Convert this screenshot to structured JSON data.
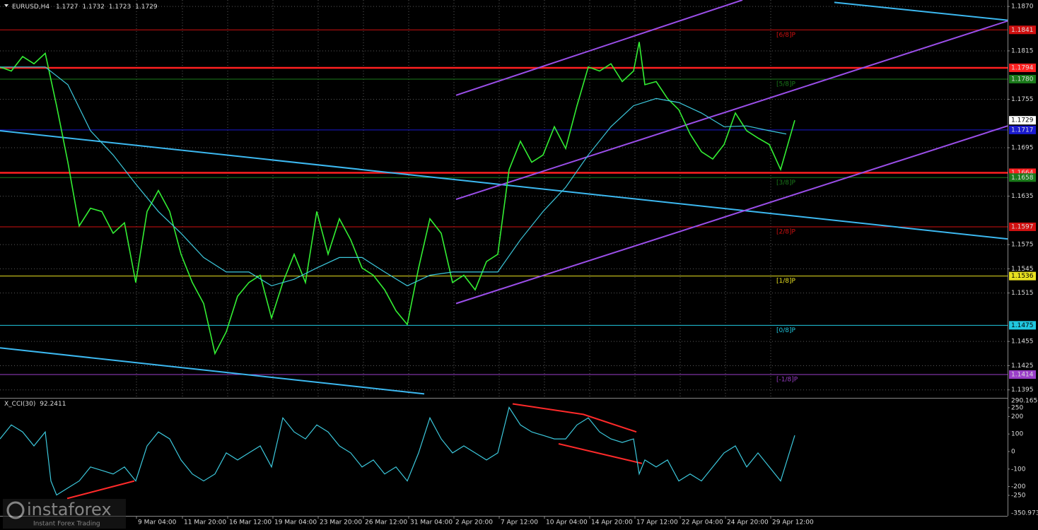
{
  "chart_data": [
    {
      "type": "line",
      "title": "EURUSD,H4",
      "quote": {
        "open": 1.1727,
        "high": 1.1732,
        "low": 1.1723,
        "close": 1.1729
      },
      "xlim": [
        0,
        356.25
      ],
      "xticks": [
        {
          "value": 48.25,
          "label": "9 Mar 04:00"
        },
        {
          "value": 64.5,
          "label": "11 Mar 20:00"
        },
        {
          "value": 80.5,
          "label": "16 Mar 12:00"
        },
        {
          "value": 96.5,
          "label": "19 Mar 04:00"
        },
        {
          "value": 112.5,
          "label": "23 Mar 20:00"
        },
        {
          "value": 128.5,
          "label": "26 Mar 12:00"
        },
        {
          "value": 144.5,
          "label": "31 Mar 04:00"
        },
        {
          "value": 160.5,
          "label": "2 Apr 20:00"
        },
        {
          "value": 176.5,
          "label": "7 Apr 12:00"
        },
        {
          "value": 192.5,
          "label": "10 Apr 04:00"
        },
        {
          "value": 208.5,
          "label": "14 Apr 20:00"
        },
        {
          "value": 224.5,
          "label": "17 Apr 12:00"
        },
        {
          "value": 240.5,
          "label": "22 Apr 04:00"
        },
        {
          "value": 256.5,
          "label": "24 Apr 20:00"
        },
        {
          "value": 272.5,
          "label": "29 Apr 12:00"
        }
      ],
      "ylim": [
        1.1386,
        1.1878
      ],
      "yticks": [
        {
          "value": 1.187,
          "label": "1.1870"
        },
        1.1815,
        1.1755,
        1.1695,
        1.1635,
        1.1575,
        1.1545,
        1.1515,
        1.1455,
        1.1425,
        1.1395
      ],
      "grid": true,
      "series": [
        {
          "color": "#33ee33",
          "x": [
            0,
            4,
            8,
            12,
            16,
            20,
            24,
            28,
            32,
            36,
            40,
            44,
            48,
            52,
            56,
            60,
            64,
            68,
            72,
            76,
            80,
            84,
            88,
            92,
            96,
            100,
            104,
            108,
            112,
            116,
            120,
            124,
            128,
            132,
            136,
            140,
            144,
            148,
            152,
            156,
            160,
            164,
            168,
            172,
            176,
            180,
            184,
            188,
            192,
            196,
            200,
            204,
            208,
            212,
            216,
            220,
            224,
            226,
            228,
            232,
            236,
            240,
            244,
            248,
            252,
            256,
            260,
            264,
            268,
            272,
            276,
            281
          ],
          "values": [
            1.1795,
            1.179,
            1.1808,
            1.1799,
            1.1812,
            1.1747,
            1.1677,
            1.1598,
            1.162,
            1.1616,
            1.1589,
            1.1602,
            1.1528,
            1.1616,
            1.1642,
            1.1616,
            1.1563,
            1.1528,
            1.1502,
            1.144,
            1.1467,
            1.1511,
            1.1528,
            1.1537,
            1.1484,
            1.1528,
            1.1563,
            1.1528,
            1.1616,
            1.1563,
            1.1607,
            1.1581,
            1.1546,
            1.1537,
            1.1519,
            1.1493,
            1.1476,
            1.1546,
            1.1607,
            1.1589,
            1.1528,
            1.1537,
            1.1519,
            1.1554,
            1.1563,
            1.1668,
            1.1703,
            1.1677,
            1.1686,
            1.1721,
            1.1694,
            1.1747,
            1.1795,
            1.179,
            1.1799,
            1.1777,
            1.179,
            1.1826,
            1.1773,
            1.1777,
            1.1756,
            1.1742,
            1.1712,
            1.169,
            1.1681,
            1.1699,
            1.1738,
            1.1716,
            1.1707,
            1.1699,
            1.1668,
            1.1729
          ]
        },
        {
          "color": "#3cc8dc",
          "x": [
            0,
            16,
            24,
            32,
            40,
            48,
            56,
            64,
            72,
            80,
            88,
            96,
            104,
            112,
            120,
            128,
            136,
            144,
            152,
            160,
            168,
            176,
            184,
            192,
            200,
            208,
            216,
            224,
            232,
            240,
            248,
            256,
            264,
            272,
            278
          ],
          "values": [
            1.1795,
            1.1795,
            1.1773,
            1.1716,
            1.1686,
            1.165,
            1.1616,
            1.1589,
            1.1559,
            1.1541,
            1.1541,
            1.1524,
            1.1532,
            1.1546,
            1.1559,
            1.1559,
            1.1541,
            1.1524,
            1.1537,
            1.1541,
            1.1541,
            1.1541,
            1.1581,
            1.1616,
            1.1646,
            1.1686,
            1.1721,
            1.1747,
            1.1756,
            1.1751,
            1.1738,
            1.1721,
            1.1722,
            1.1716,
            1.1712
          ]
        }
      ],
      "lines": [
        {
          "color": "#3cb8f0",
          "x": [
            0,
            356.25
          ],
          "values": [
            1.1716,
            1.1582
          ]
        },
        {
          "color": "#3cb8f0",
          "x": [
            0,
            150
          ],
          "values": [
            1.1447,
            1.139
          ]
        },
        {
          "color": "#3cb8f0",
          "x": [
            295,
            356.25
          ],
          "values": [
            1.1875,
            1.1853
          ]
        },
        {
          "color": "#9a4ee8",
          "x": [
            161.25,
            262.5
          ],
          "values": [
            1.176,
            1.1878
          ]
        },
        {
          "color": "#9a4ee8",
          "x": [
            161.25,
            356.25
          ],
          "values": [
            1.1631,
            1.1852
          ]
        },
        {
          "color": "#9a4ee8",
          "x": [
            161.25,
            356.25
          ],
          "values": [
            1.1502,
            1.1722
          ]
        }
      ],
      "levels": [
        {
          "value": 1.1841,
          "color": "#d01010",
          "name": "[6/8]P"
        },
        {
          "value": 1.1794,
          "color": "#ff2020",
          "style": "thick"
        },
        {
          "value": {
            "value": 1.178,
            "label": "1.1780"
          },
          "color": "#1a7a1a",
          "name": "[5/8]P"
        },
        {
          "value": 1.1717,
          "color": "#1a1ad0"
        },
        {
          "value": 1.1664,
          "color": "#ff2020",
          "style": "thick"
        },
        {
          "value": 1.1658,
          "color": "#1a7a1a",
          "name": "[3/8]P"
        },
        {
          "value": 1.1597,
          "color": "#d01010",
          "name": "[2/8]P"
        },
        {
          "value": 1.1536,
          "color": "#e8e020",
          "name": "[1/8]P"
        },
        {
          "value": 1.1475,
          "color": "#20c8e0",
          "name": "[0/8]P"
        },
        {
          "value": 1.1414,
          "color": "#9a3ec8",
          "name": "[-1/8]P"
        }
      ]
    },
    {
      "type": "line",
      "title": "X_CCI(30)",
      "last": 92.2411,
      "ylim": [
        -350.973,
        290.1656
      ],
      "yticks": [
        250,
        200,
        100,
        0,
        -100,
        -200,
        -250
      ],
      "series": [
        {
          "color": "#3cc8dc",
          "x": [
            0,
            4,
            8,
            12,
            16,
            18,
            20,
            24,
            28,
            32,
            36,
            40,
            44,
            48,
            52,
            56,
            60,
            64,
            68,
            72,
            76,
            80,
            84,
            88,
            92,
            96,
            100,
            104,
            108,
            112,
            116,
            120,
            124,
            128,
            132,
            136,
            140,
            144,
            148,
            152,
            156,
            160,
            164,
            168,
            172,
            176,
            180,
            184,
            188,
            192,
            196,
            200,
            204,
            208,
            212,
            216,
            220,
            224,
            226,
            228,
            232,
            236,
            240,
            244,
            248,
            252,
            256,
            260,
            264,
            268,
            272,
            276,
            281
          ],
          "values": [
            72,
            152,
            112,
            32,
            112,
            -168,
            -248,
            -208,
            -168,
            -88,
            -108,
            -128,
            -88,
            -168,
            32,
            112,
            72,
            -48,
            -128,
            -168,
            -128,
            -8,
            -48,
            -8,
            32,
            -88,
            192,
            112,
            72,
            152,
            112,
            32,
            -8,
            -88,
            -48,
            -128,
            -88,
            -168,
            -8,
            192,
            72,
            -8,
            32,
            -8,
            -48,
            -8,
            252,
            152,
            112,
            92,
            72,
            72,
            152,
            192,
            112,
            72,
            52,
            72,
            -128,
            -48,
            -88,
            -48,
            -168,
            -128,
            -168,
            -88,
            -8,
            32,
            -88,
            -8,
            -88,
            -168,
            92
          ]
        }
      ],
      "lines": [
        {
          "color": "#ff2a2a",
          "x": [
            23.75,
            47.5
          ],
          "values": [
            -268,
            -168
          ]
        },
        {
          "color": "#ff2a2a",
          "x": [
            181.25,
            206.25,
            225
          ],
          "values": [
            272,
            212,
            112
          ]
        },
        {
          "color": "#ff2a2a",
          "x": [
            197.5,
            227
          ],
          "values": [
            44,
            -68
          ]
        }
      ]
    }
  ],
  "watermark": {
    "brand": "instaforex",
    "tagline": "Instant Forex Trading"
  }
}
